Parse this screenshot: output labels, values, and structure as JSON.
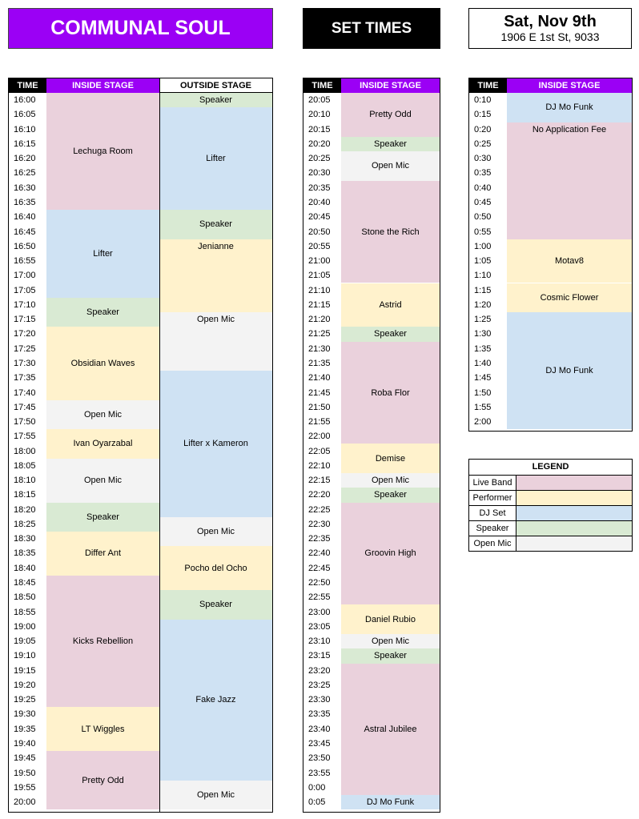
{
  "header": {
    "title": "COMMUNAL SOUL",
    "set_times": "SET TIMES",
    "date": "Sat, Nov 9th",
    "address": "1906 E 1st St, 9033"
  },
  "colors": {
    "live": "#ead1dc",
    "perf": "#fff2cc",
    "dj": "#cfe2f3",
    "speaker": "#d9ead3",
    "open": "#f3f3f3",
    "accent": "#9b00f5"
  },
  "column_headers": {
    "time": "TIME",
    "inside": "INSIDE STAGE",
    "outside": "OUTSIDE STAGE"
  },
  "grid1": {
    "times": [
      "16:00",
      "16:05",
      "16:10",
      "16:15",
      "16:20",
      "16:25",
      "16:30",
      "16:35",
      "16:40",
      "16:45",
      "16:50",
      "16:55",
      "17:00",
      "17:05",
      "17:10",
      "17:15",
      "17:20",
      "17:25",
      "17:30",
      "17:35",
      "17:40",
      "17:45",
      "17:50",
      "17:55",
      "18:00",
      "18:05",
      "18:10",
      "18:15",
      "18:20",
      "18:25",
      "18:30",
      "18:35",
      "18:40",
      "18:45",
      "18:50",
      "18:55",
      "19:00",
      "19:05",
      "19:10",
      "19:15",
      "19:20",
      "19:25",
      "19:30",
      "19:35",
      "19:40",
      "19:45",
      "19:50",
      "19:55",
      "20:00"
    ],
    "inside": [
      {
        "label": "Lechuga Room",
        "type": "live",
        "start": 0,
        "span": 8
      },
      {
        "label": "Lifter",
        "type": "dj",
        "start": 8,
        "span": 6
      },
      {
        "label": "Speaker",
        "type": "speaker",
        "start": 14,
        "span": 2
      },
      {
        "label": "Obsidian Waves",
        "type": "perf",
        "start": 16,
        "span": 5
      },
      {
        "label": "Open Mic",
        "type": "open",
        "start": 21,
        "span": 2
      },
      {
        "label": "Ivan Oyarzabal",
        "type": "perf",
        "start": 23,
        "span": 2
      },
      {
        "label": "Open Mic",
        "type": "open",
        "start": 25,
        "span": 3
      },
      {
        "label": "Speaker",
        "type": "speaker",
        "start": 28,
        "span": 2
      },
      {
        "label": "Differ Ant",
        "type": "perf",
        "start": 30,
        "span": 3
      },
      {
        "label": "Kicks Rebellion",
        "type": "live",
        "start": 33,
        "span": 9
      },
      {
        "label": "LT Wiggles",
        "type": "perf",
        "start": 42,
        "span": 3
      },
      {
        "label": "Pretty Odd",
        "type": "live",
        "start": 45,
        "span": 4
      }
    ],
    "outside": [
      {
        "label": "Speaker",
        "type": "speaker",
        "start": 0,
        "span": 1
      },
      {
        "label": "Lifter",
        "type": "dj",
        "start": 1,
        "span": 7
      },
      {
        "label": "Speaker",
        "type": "speaker",
        "start": 8,
        "span": 2
      },
      {
        "label": "Jenianne",
        "type": "perf",
        "start": 10,
        "span": 5,
        "valign": "top"
      },
      {
        "label": "Open Mic",
        "type": "open",
        "start": 15,
        "span": 4,
        "valign": "top"
      },
      {
        "label": "Lifter x Kameron",
        "type": "dj",
        "start": 19,
        "span": 10
      },
      {
        "label": "Open Mic",
        "type": "open",
        "start": 29,
        "span": 2
      },
      {
        "label": "Pocho del Ocho",
        "type": "perf",
        "start": 31,
        "span": 3
      },
      {
        "label": "Speaker",
        "type": "speaker",
        "start": 34,
        "span": 2
      },
      {
        "label": "Fake Jazz",
        "type": "dj",
        "start": 36,
        "span": 11
      },
      {
        "label": "Open Mic",
        "type": "open",
        "start": 47,
        "span": 2
      }
    ]
  },
  "grid2": {
    "times": [
      "20:05",
      "20:10",
      "20:15",
      "20:20",
      "20:25",
      "20:30",
      "20:35",
      "20:40",
      "20:45",
      "20:50",
      "20:55",
      "21:00",
      "21:05",
      "21:10",
      "21:15",
      "21:20",
      "21:25",
      "21:30",
      "21:35",
      "21:40",
      "21:45",
      "21:50",
      "21:55",
      "22:00",
      "22:05",
      "22:10",
      "22:15",
      "22:20",
      "22:25",
      "22:30",
      "22:35",
      "22:40",
      "22:45",
      "22:50",
      "22:55",
      "23:00",
      "23:05",
      "23:10",
      "23:15",
      "23:20",
      "23:25",
      "23:30",
      "23:35",
      "23:40",
      "23:45",
      "23:50",
      "23:55",
      "0:00",
      "0:05"
    ],
    "inside": [
      {
        "label": "Pretty Odd",
        "type": "live",
        "start": 0,
        "span": 3
      },
      {
        "label": "Speaker",
        "type": "speaker",
        "start": 3,
        "span": 1
      },
      {
        "label": "Open Mic",
        "type": "open",
        "start": 4,
        "span": 2
      },
      {
        "label": "Stone the Rich",
        "type": "live",
        "start": 6,
        "span": 7
      },
      {
        "label": "Astrid",
        "type": "perf",
        "start": 13,
        "span": 3
      },
      {
        "label": "Speaker",
        "type": "speaker",
        "start": 16,
        "span": 1
      },
      {
        "label": "Roba Flor",
        "type": "live",
        "start": 17,
        "span": 7
      },
      {
        "label": "Demise",
        "type": "perf",
        "start": 24,
        "span": 2
      },
      {
        "label": "Open Mic",
        "type": "open",
        "start": 26,
        "span": 1
      },
      {
        "label": "Speaker",
        "type": "speaker",
        "start": 27,
        "span": 1
      },
      {
        "label": "Groovin High",
        "type": "live",
        "start": 28,
        "span": 7
      },
      {
        "label": "Daniel Rubio",
        "type": "perf",
        "start": 35,
        "span": 2
      },
      {
        "label": "Open Mic",
        "type": "open",
        "start": 37,
        "span": 1
      },
      {
        "label": "Speaker",
        "type": "speaker",
        "start": 38,
        "span": 1
      },
      {
        "label": "Astral Jubilee",
        "type": "live",
        "start": 39,
        "span": 9
      },
      {
        "label": "DJ Mo Funk",
        "type": "dj",
        "start": 48,
        "span": 1
      }
    ]
  },
  "grid3": {
    "times": [
      "0:10",
      "0:15",
      "0:20",
      "0:25",
      "0:30",
      "0:35",
      "0:40",
      "0:45",
      "0:50",
      "0:55",
      "1:00",
      "1:05",
      "1:10",
      "1:15",
      "1:20",
      "1:25",
      "1:30",
      "1:35",
      "1:40",
      "1:45",
      "1:50",
      "1:55",
      "2:00"
    ],
    "inside": [
      {
        "label": "DJ Mo Funk",
        "type": "dj",
        "start": 0,
        "span": 2
      },
      {
        "label": "No Application Fee",
        "type": "live",
        "start": 2,
        "span": 8,
        "valign": "top"
      },
      {
        "label": "Motav8",
        "type": "perf",
        "start": 10,
        "span": 3
      },
      {
        "label": "Cosmic Flower",
        "type": "perf",
        "start": 13,
        "span": 2
      },
      {
        "label": "DJ Mo Funk",
        "type": "dj",
        "start": 15,
        "span": 8
      }
    ]
  },
  "legend": {
    "title": "LEGEND",
    "items": [
      {
        "label": "Live Band",
        "type": "live"
      },
      {
        "label": "Performer",
        "type": "perf"
      },
      {
        "label": "DJ Set",
        "type": "dj"
      },
      {
        "label": "Speaker",
        "type": "speaker"
      },
      {
        "label": "Open Mic",
        "type": "open"
      }
    ]
  }
}
